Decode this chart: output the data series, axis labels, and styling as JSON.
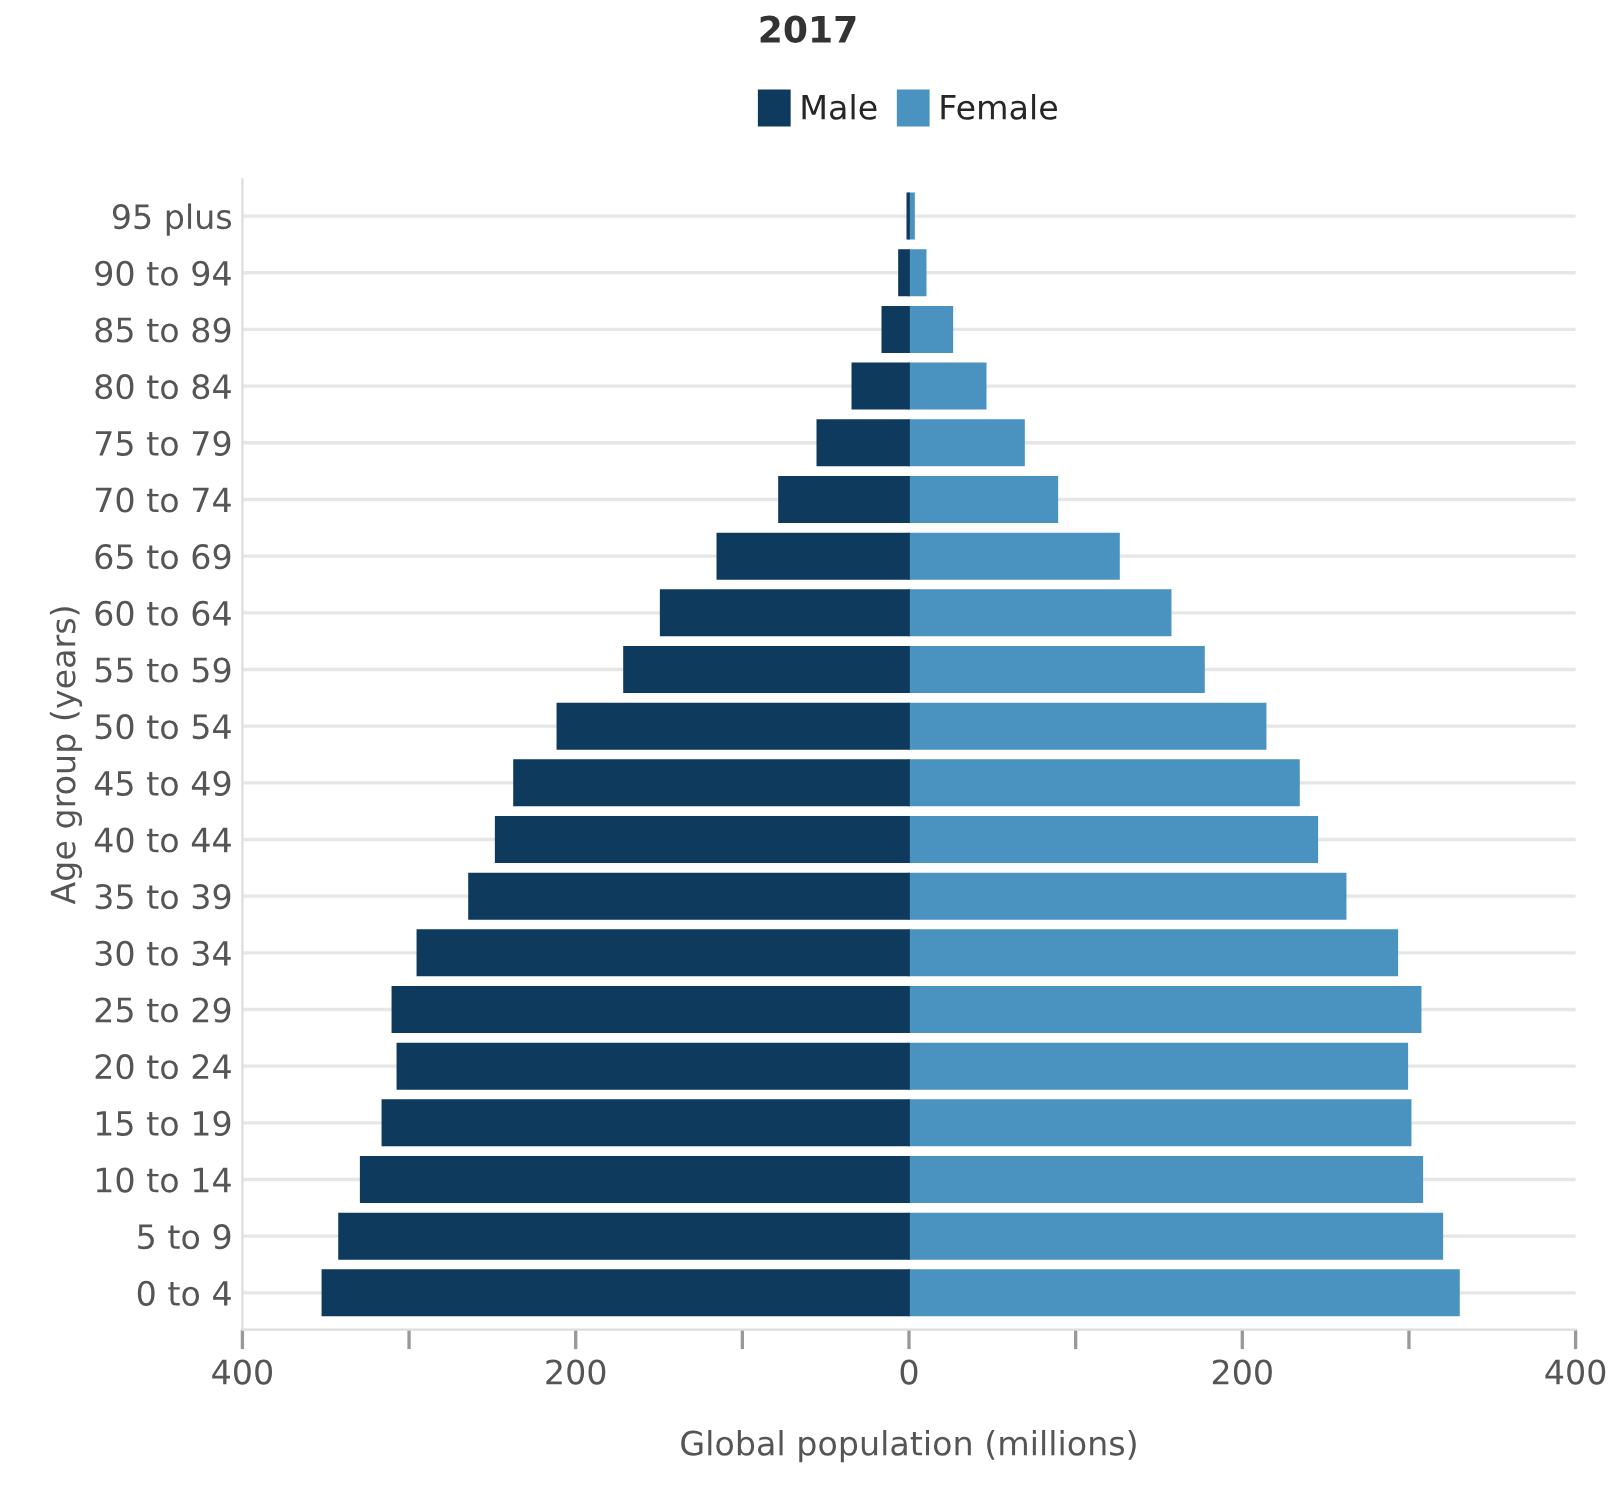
{
  "chart_data": {
    "type": "bar",
    "orientation": "horizontal",
    "stacked": true,
    "title": "2017",
    "xlabel": "Global population (millions)",
    "ylabel": "Age group (years)",
    "categories": [
      "95 plus",
      "90 to 94",
      "85 to 89",
      "80 to 84",
      "75 to 79",
      "70 to 74",
      "65 to 69",
      "60 to 64",
      "55 to 59",
      "50 to 54",
      "45 to 49",
      "40 to 44",
      "35 to 39",
      "30 to 34",
      "25 to 29",
      "20 to 24",
      "15 to 19",
      "10 to 14",
      "5 to 9",
      "0 to 4"
    ],
    "series": [
      {
        "name": "Male",
        "color": "#0e3a5e",
        "values": [
          -1,
          -6,
          -16,
          -34,
          -55,
          -78,
          -115,
          -149,
          -171,
          -211,
          -237,
          -248,
          -264,
          -295,
          -310,
          -307,
          -316,
          -329,
          -342,
          -352
        ]
      },
      {
        "name": "Female",
        "color": "#4a93c0",
        "values": [
          3,
          10,
          26,
          46,
          69,
          89,
          126,
          157,
          177,
          214,
          234,
          245,
          262,
          293,
          307,
          299,
          301,
          308,
          320,
          330
        ]
      }
    ],
    "xlim": [
      -400,
      400
    ],
    "xticks": [
      {
        "value": -400,
        "label": "400"
      },
      {
        "value": -300,
        "label": null
      },
      {
        "value": -200,
        "label": "200"
      },
      {
        "value": -100,
        "label": null
      },
      0,
      {
        "value": 100,
        "label": null
      },
      {
        "value": 200,
        "label": "200"
      },
      {
        "value": 300,
        "label": null
      },
      {
        "value": 400,
        "label": "400"
      }
    ],
    "grid": "y",
    "legend": "top"
  }
}
